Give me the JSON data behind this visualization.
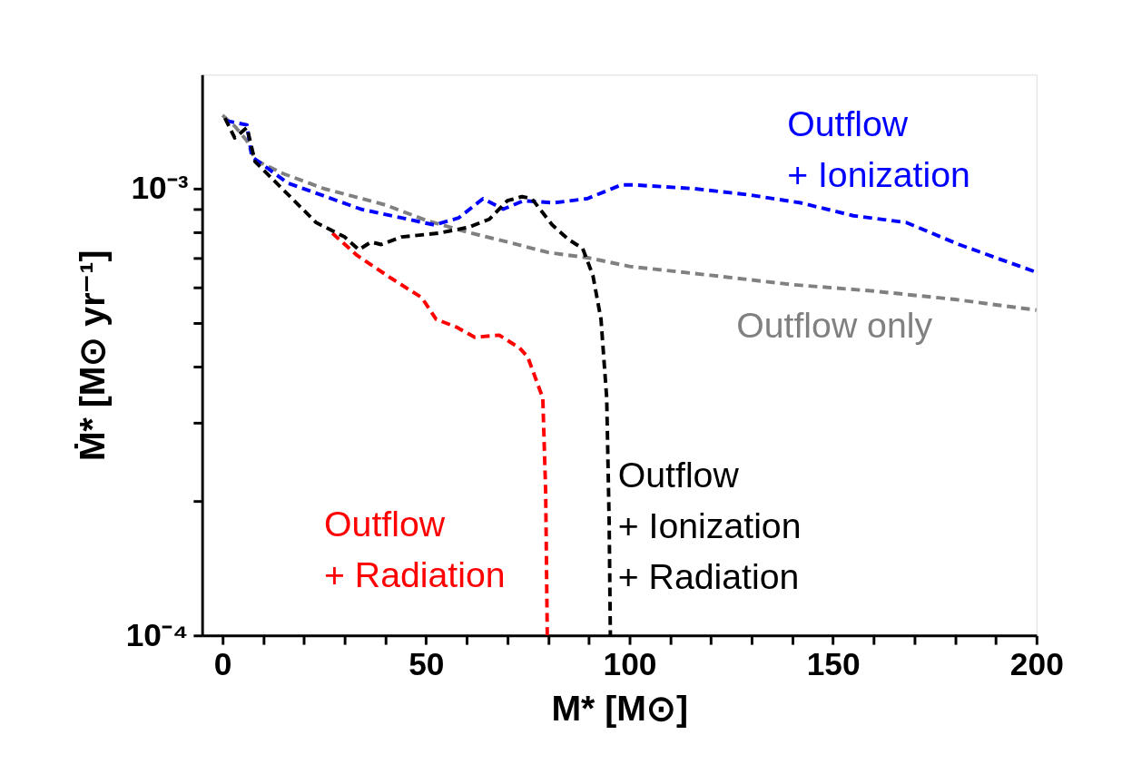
{
  "chart_data": {
    "type": "line",
    "xlabel": "M* [M⊙]",
    "ylabel": "Ṁ* [M⊙ yr⁻¹]",
    "log": "y",
    "grid": false,
    "legend": false,
    "line_style": "dashed",
    "marker": "none",
    "xlim": [
      -5,
      200
    ],
    "xticks": [
      0,
      {
        "value": 10,
        "label": null
      },
      {
        "value": 20,
        "label": null
      },
      {
        "value": 30,
        "label": null
      },
      {
        "value": 40,
        "label": null
      },
      50,
      {
        "value": 60,
        "label": null
      },
      {
        "value": 70,
        "label": null
      },
      {
        "value": 80,
        "label": null
      },
      {
        "value": 90,
        "label": null
      },
      100,
      {
        "value": 110,
        "label": null
      },
      {
        "value": 120,
        "label": null
      },
      {
        "value": 130,
        "label": null
      },
      {
        "value": 140,
        "label": null
      },
      150,
      {
        "value": 160,
        "label": null
      },
      {
        "value": 170,
        "label": null
      },
      {
        "value": 180,
        "label": null
      },
      {
        "value": 190,
        "label": null
      },
      200
    ],
    "ylim": [
      0.0001,
      0.0018
    ],
    "yticks": [
      {
        "value": 0.0001,
        "label": "10⁻⁴"
      },
      {
        "value": 0.0002,
        "label": null
      },
      {
        "value": 0.0003,
        "label": null
      },
      {
        "value": 0.0004,
        "label": null
      },
      {
        "value": 0.0005,
        "label": null
      },
      {
        "value": 0.0006,
        "label": null
      },
      {
        "value": 0.0007,
        "label": null
      },
      {
        "value": 0.0008,
        "label": null
      },
      {
        "value": 0.0009,
        "label": null
      },
      {
        "value": 0.001,
        "label": "10⁻³"
      }
    ],
    "series": [
      {
        "name": "Outflow only",
        "color": "#808080",
        "x": [
          0,
          3,
          6,
          8,
          15,
          25,
          40,
          50,
          60,
          70,
          80,
          90,
          100,
          120,
          140,
          160,
          180,
          200
        ],
        "values": [
          0.00146,
          0.00138,
          0.00128,
          0.00116,
          0.00108,
          0.001,
          0.00092,
          0.00085,
          0.0008,
          0.00076,
          0.00072,
          0.0007,
          0.00067,
          0.00064,
          0.00061,
          0.00059,
          0.000565,
          0.000535
        ]
      },
      {
        "name": "Outflow\n+ Ionization",
        "color": "#0000ff",
        "x": [
          0.7,
          6,
          7.2,
          16,
          34,
          52,
          58,
          64,
          69,
          74,
          81.5,
          89.6,
          98,
          101,
          116,
          129,
          142,
          155,
          168,
          181,
          200
        ],
        "values": [
          0.00142,
          0.00139,
          0.00118,
          0.00103,
          0.0009,
          0.00083,
          0.00086,
          0.00095,
          0.0009,
          0.00094,
          0.00093,
          0.00095,
          0.00102,
          0.00102,
          0.001,
          0.00097,
          0.00093,
          0.00087,
          0.00084,
          0.00075,
          0.00065
        ]
      },
      {
        "name": "Outflow\n+ Radiation",
        "color": "#ff0000",
        "x": [
          27,
          33,
          41.5,
          49,
          52.5,
          57.5,
          62,
          68,
          73,
          75,
          78.7,
          79.4,
          79.8
        ],
        "values": [
          0.000795,
          0.00071,
          0.00063,
          0.00057,
          0.00051,
          0.00049,
          0.000465,
          0.00047,
          0.00044,
          0.00042,
          0.00034,
          0.00021,
          0.0001
        ]
      },
      {
        "name": "Outflow\n+ Ionization\n+ Radiation",
        "color": "#000000",
        "x": [
          0.6,
          3,
          6,
          8,
          23,
          30,
          33.5,
          36.5,
          39,
          44,
          53,
          60.5,
          65.6,
          70,
          73.6,
          76,
          81,
          85,
          88.5,
          91,
          93,
          94.4,
          95,
          95.3
        ],
        "values": [
          0.00144,
          0.0013,
          0.00137,
          0.00115,
          0.00084,
          0.00078,
          0.00073,
          0.00076,
          0.00075,
          0.00078,
          0.000795,
          0.00082,
          0.000855,
          0.00094,
          0.00096,
          0.00095,
          0.00083,
          0.00077,
          0.000735,
          0.00064,
          0.00051,
          0.00034,
          0.00018,
          0.0001
        ]
      }
    ]
  }
}
